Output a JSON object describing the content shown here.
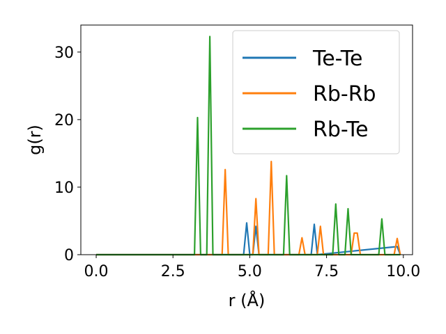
{
  "chart_data": {
    "type": "line",
    "title": "",
    "xlabel": "r (Å)",
    "ylabel": "g(r)",
    "xlim": [
      -0.5,
      10.3
    ],
    "ylim": [
      0,
      34
    ],
    "xticks": [
      0.0,
      2.5,
      5.0,
      7.5,
      10.0
    ],
    "xtick_labels": [
      "0.0",
      "2.5",
      "5.0",
      "7.5",
      "10.0"
    ],
    "yticks": [
      0,
      10,
      20,
      30
    ],
    "ytick_labels": [
      "0",
      "10",
      "20",
      "30"
    ],
    "grid": false,
    "legend_position": "top-right",
    "series": [
      {
        "name": "Te-Te",
        "color": "#1f77b4",
        "x": [
          0.0,
          4.8,
          4.9,
          5.0,
          5.1,
          5.2,
          5.3,
          7.0,
          7.1,
          7.2,
          9.8,
          9.9
        ],
        "y": [
          0,
          0,
          4.7,
          0,
          0,
          4.2,
          0,
          0,
          4.5,
          0,
          1.2,
          0
        ]
      },
      {
        "name": "Rb-Rb",
        "color": "#ff7f0e",
        "x": [
          0.0,
          4.1,
          4.2,
          4.3,
          5.1,
          5.2,
          5.3,
          5.6,
          5.7,
          5.8,
          6.6,
          6.7,
          6.8,
          7.2,
          7.3,
          7.4,
          8.3,
          8.4,
          8.5,
          8.6,
          9.7,
          9.8,
          9.9
        ],
        "y": [
          0,
          0,
          12.6,
          0,
          0,
          8.3,
          0,
          0,
          13.8,
          0,
          0,
          2.5,
          0,
          0,
          4.2,
          0,
          0,
          3.2,
          3.2,
          0,
          0,
          2.4,
          0
        ]
      },
      {
        "name": "Rb-Te",
        "color": "#2ca02c",
        "x": [
          0.0,
          3.2,
          3.3,
          3.4,
          3.6,
          3.7,
          3.8,
          6.1,
          6.2,
          6.3,
          7.7,
          7.8,
          7.9,
          8.1,
          8.2,
          8.3,
          9.2,
          9.3,
          9.4,
          9.9
        ],
        "y": [
          0,
          0,
          20.3,
          0,
          0,
          32.3,
          0,
          0,
          11.7,
          0,
          0,
          7.5,
          0,
          0,
          6.8,
          0,
          0,
          5.3,
          0,
          0
        ]
      }
    ]
  }
}
